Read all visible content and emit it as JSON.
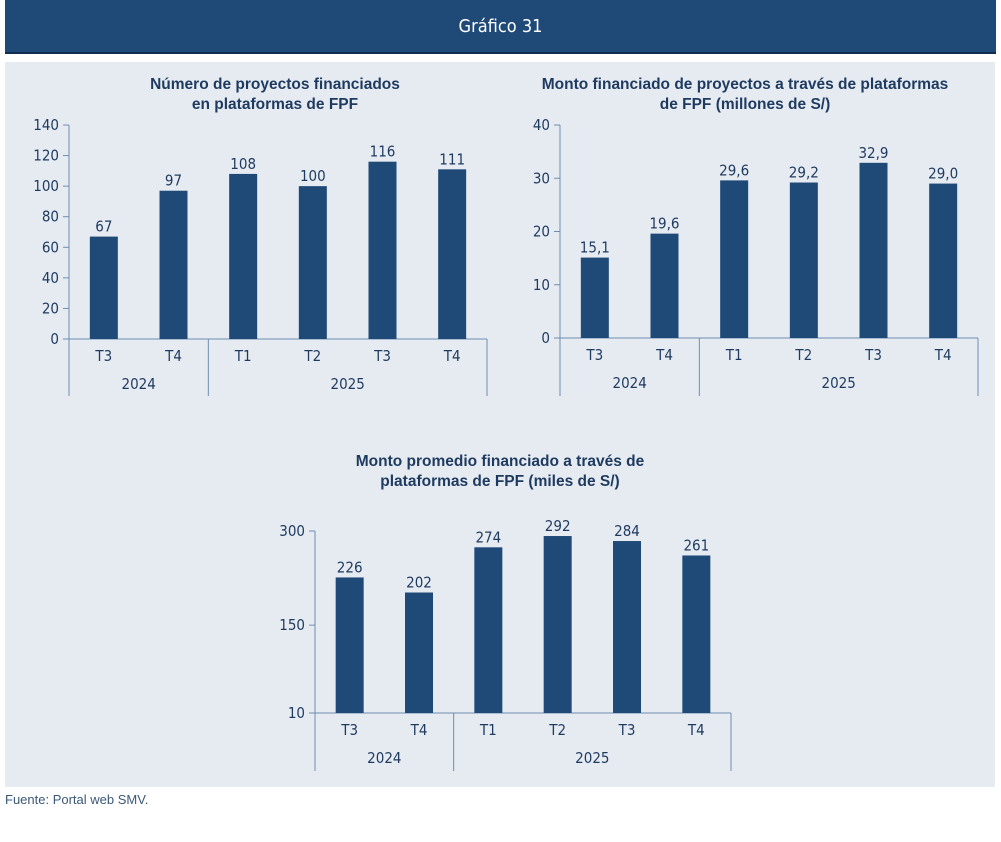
{
  "header": {
    "title": "Gráfico 31"
  },
  "source": "Fuente: Portal web SMV.",
  "chart_data": [
    {
      "type": "bar",
      "title": "Número de proyectos financiados\nen plataformas de FPF",
      "categories": [
        "T3",
        "T4",
        "T1",
        "T2",
        "T3",
        "T4"
      ],
      "groups": [
        {
          "label": "2024",
          "count": 2
        },
        {
          "label": "2025",
          "count": 4
        }
      ],
      "values": [
        67,
        97,
        108,
        100,
        116,
        111
      ],
      "value_labels": [
        "67",
        "97",
        "108",
        "100",
        "116",
        "111"
      ],
      "ylim": [
        0,
        140
      ],
      "yticks": [
        0,
        20,
        40,
        60,
        80,
        100,
        120,
        140
      ],
      "ytick_labels": [
        "0",
        "20",
        "40",
        "60",
        "80",
        "100",
        "120",
        "140"
      ],
      "grid": false,
      "bar_color": "#1f4a78"
    },
    {
      "type": "bar",
      "title": "Monto financiado de proyectos a través de plataformas\nde FPF (millones de S/)",
      "categories": [
        "T3",
        "T4",
        "T1",
        "T2",
        "T3",
        "T4"
      ],
      "groups": [
        {
          "label": "2024",
          "count": 2
        },
        {
          "label": "2025",
          "count": 4
        }
      ],
      "values": [
        15.1,
        19.6,
        29.6,
        29.2,
        32.9,
        29.0
      ],
      "value_labels": [
        "15,1",
        "19,6",
        "29,6",
        "29,2",
        "32,9",
        "29,0"
      ],
      "ylim": [
        0,
        40
      ],
      "yticks": [
        0,
        10,
        20,
        30,
        40
      ],
      "ytick_labels": [
        "0",
        "10",
        "20",
        "30",
        "40"
      ],
      "grid": false,
      "bar_color": "#1f4a78"
    },
    {
      "type": "bar",
      "title": "Monto promedio financiado a través de\nplataformas de FPF (miles de S/)",
      "categories": [
        "T3",
        "T4",
        "T1",
        "T2",
        "T3",
        "T4"
      ],
      "groups": [
        {
          "label": "2024",
          "count": 2
        },
        {
          "label": "2025",
          "count": 4
        }
      ],
      "values": [
        226,
        202,
        274,
        292,
        284,
        261
      ],
      "value_labels": [
        "226",
        "202",
        "274",
        "292",
        "284",
        "261"
      ],
      "ylim": [
        10,
        300
      ],
      "yticks": [
        10,
        150,
        300
      ],
      "ytick_labels": [
        "10",
        "150",
        "300"
      ],
      "grid": false,
      "bar_color": "#1f4a78"
    }
  ]
}
